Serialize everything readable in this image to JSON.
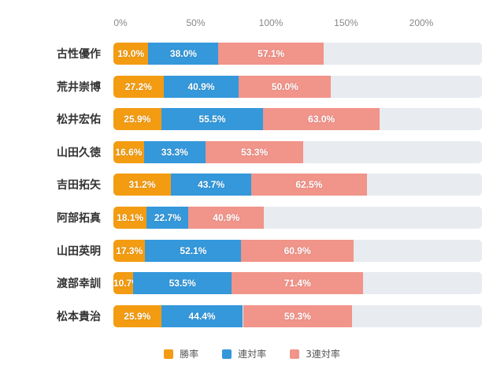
{
  "chart_data": {
    "type": "bar",
    "stacked": true,
    "orientation": "horizontal",
    "title": "",
    "xlabel": "",
    "ylabel": "",
    "xlim": [
      0,
      200
    ],
    "x_ticks": [
      "0%",
      "50%",
      "100%",
      "150%",
      "200%"
    ],
    "categories": [
      "古性優作",
      "荒井崇博",
      "松井宏佑",
      "山田久徳",
      "吉田拓矢",
      "阿部拓真",
      "山田英明",
      "渡部幸訓",
      "松本貴治"
    ],
    "series": [
      {
        "name": "勝率",
        "color": "#f39c12",
        "values": [
          19.0,
          27.2,
          25.9,
          16.6,
          31.2,
          18.1,
          17.3,
          10.7,
          25.9
        ]
      },
      {
        "name": "連対率",
        "color": "#3498db",
        "values": [
          38.0,
          40.9,
          55.5,
          33.3,
          43.7,
          22.7,
          52.1,
          53.5,
          44.4
        ]
      },
      {
        "name": "3連対率",
        "color": "#f1948a",
        "values": [
          57.1,
          50.0,
          63.0,
          53.3,
          62.5,
          40.9,
          60.9,
          71.4,
          59.3
        ]
      }
    ],
    "legend_position": "bottom"
  }
}
